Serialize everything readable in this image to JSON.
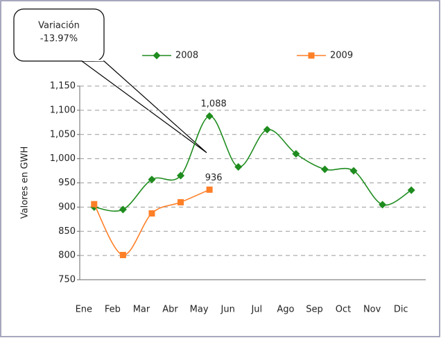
{
  "chart_data": {
    "type": "line",
    "annotation": [
      "Variación",
      "-13.97%"
    ],
    "y_label": "Valores en GWH",
    "categories": [
      "Ene",
      "Feb",
      "Mar",
      "Abr",
      "May",
      "Jun",
      "Jul",
      "Ago",
      "Sep",
      "Oct",
      "Nov",
      "Dic"
    ],
    "series": [
      {
        "name": "2008",
        "color": "#1e8c1e",
        "marker": "diamond",
        "values": [
          900,
          895,
          957,
          965,
          1088,
          983,
          1060,
          1010,
          978,
          975,
          905,
          935
        ],
        "value_labels": [
          null,
          null,
          null,
          null,
          "1,088",
          null,
          null,
          null,
          null,
          null,
          null,
          null
        ]
      },
      {
        "name": "2009",
        "color": "#ff7f27",
        "marker": "square",
        "values": [
          906,
          801,
          887,
          910,
          936,
          null,
          null,
          null,
          null,
          null,
          null,
          null
        ],
        "value_labels": [
          null,
          null,
          null,
          null,
          "936",
          null,
          null,
          null,
          null,
          null,
          null,
          null
        ]
      }
    ],
    "ylim": [
      750,
      1150
    ],
    "yticks": [
      750,
      800,
      850,
      900,
      950,
      {
        "value": 1000,
        "label": "1,000"
      },
      {
        "value": 1050,
        "label": "1,050"
      },
      {
        "value": 1100,
        "label": "1,100"
      },
      {
        "value": 1150,
        "label": "1,150"
      }
    ],
    "grid": true,
    "legend": "top"
  }
}
